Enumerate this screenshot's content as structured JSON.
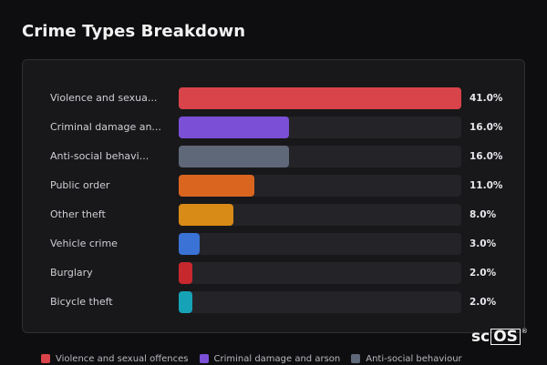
{
  "title": "Crime Types Breakdown",
  "rows": [
    {
      "label": "Violence and sexua...",
      "value": 41.0,
      "pct": "41.0%",
      "color": "#d9434a"
    },
    {
      "label": "Criminal damage an...",
      "value": 16.0,
      "pct": "16.0%",
      "color": "#7b4fd6"
    },
    {
      "label": "Anti-social behavi...",
      "value": 16.0,
      "pct": "16.0%",
      "color": "#5f6878"
    },
    {
      "label": "Public order",
      "value": 11.0,
      "pct": "11.0%",
      "color": "#d9651f"
    },
    {
      "label": "Other theft",
      "value": 8.0,
      "pct": "8.0%",
      "color": "#d88b16"
    },
    {
      "label": "Vehicle crime",
      "value": 3.0,
      "pct": "3.0%",
      "color": "#3a72d6"
    },
    {
      "label": "Burglary",
      "value": 2.0,
      "pct": "2.0%",
      "color": "#c7282e"
    },
    {
      "label": "Bicycle theft",
      "value": 2.0,
      "pct": "2.0%",
      "color": "#16a3b8"
    }
  ],
  "max_value": 41.0,
  "legend": [
    {
      "label": "Violence and sexual offences",
      "color": "#d9434a"
    },
    {
      "label": "Criminal damage and arson",
      "color": "#7b4fd6"
    },
    {
      "label": "Anti-social behaviour",
      "color": "#5f6878"
    }
  ],
  "logo": {
    "sc": "sc",
    "os": "OS",
    "reg": "®"
  }
}
